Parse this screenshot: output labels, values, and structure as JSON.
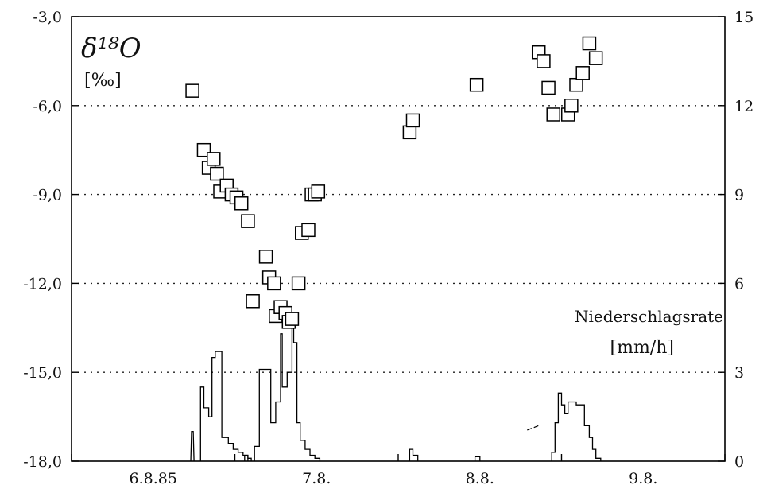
{
  "chart_data": {
    "type": "scatter",
    "title": "",
    "left_axis": {
      "label_line1": "δ¹⁸O",
      "label_line2": "[‰]",
      "ylim": [
        -18,
        -3
      ],
      "ticks": [
        -3,
        -6,
        -9,
        -12,
        -15,
        -18
      ],
      "tick_labels": [
        "-3,0",
        "-6,0",
        "-9,0",
        "-12,0",
        "-15,0",
        "-18,0"
      ]
    },
    "right_axis": {
      "label_line1": "Niederschlagsrate",
      "label_line2": "[mm/h]",
      "ylim": [
        0,
        15
      ],
      "ticks": [
        0,
        3,
        6,
        9,
        12,
        15
      ],
      "tick_labels": [
        "0",
        "3",
        "6",
        "9",
        "12",
        "15"
      ]
    },
    "x_axis": {
      "unit": "day",
      "xlim": [
        0,
        4
      ],
      "major_ticks": [
        0.5,
        1.5,
        2.5,
        3.5
      ],
      "tick_labels": [
        "6.8.85",
        "7.8.",
        "8.8.",
        "9.8."
      ],
      "minor_ticks": [
        0,
        1,
        2,
        3,
        4
      ]
    },
    "grid": {
      "style": "dotted",
      "y_lines": [
        -6,
        -9,
        -12,
        -15
      ]
    },
    "series": [
      {
        "kind": "scatter",
        "axis": "left",
        "marker": "open-square",
        "points": [
          [
            0.74,
            -5.5
          ],
          [
            0.81,
            -7.5
          ],
          [
            0.84,
            -8.1
          ],
          [
            0.87,
            -7.8
          ],
          [
            0.89,
            -8.3
          ],
          [
            0.91,
            -8.9
          ],
          [
            0.95,
            -8.7
          ],
          [
            0.98,
            -9.0
          ],
          [
            1.01,
            -9.1
          ],
          [
            1.04,
            -9.3
          ],
          [
            1.08,
            -9.9
          ],
          [
            1.11,
            -12.6
          ],
          [
            1.19,
            -11.1
          ],
          [
            1.21,
            -11.8
          ],
          [
            1.24,
            -12.0
          ],
          [
            1.25,
            -13.1
          ],
          [
            1.28,
            -12.8
          ],
          [
            1.31,
            -13.0
          ],
          [
            1.33,
            -13.3
          ],
          [
            1.35,
            -13.2
          ],
          [
            1.39,
            -12.0
          ],
          [
            1.41,
            -10.3
          ],
          [
            1.45,
            -10.2
          ],
          [
            1.47,
            -9.0
          ],
          [
            1.49,
            -9.0
          ],
          [
            1.51,
            -8.9
          ],
          [
            2.07,
            -6.9
          ],
          [
            2.09,
            -6.5
          ],
          [
            2.48,
            -5.3
          ],
          [
            2.86,
            -4.2
          ],
          [
            2.89,
            -4.5
          ],
          [
            2.92,
            -5.4
          ],
          [
            2.95,
            -6.3
          ],
          [
            3.04,
            -6.3
          ],
          [
            3.06,
            -6.0
          ],
          [
            3.09,
            -5.3
          ],
          [
            3.13,
            -4.9
          ],
          [
            3.17,
            -3.9
          ],
          [
            3.21,
            -4.4
          ]
        ]
      },
      {
        "kind": "step",
        "axis": "right",
        "name": "Niederschlagsrate",
        "segments": [
          [
            [
              0.73,
              0
            ],
            [
              0.735,
              1.0
            ],
            [
              0.745,
              1.0
            ],
            [
              0.75,
              0
            ]
          ],
          [
            [
              0.79,
              0
            ],
            [
              0.79,
              2.5
            ],
            [
              0.81,
              2.5
            ],
            [
              0.81,
              1.8
            ],
            [
              0.84,
              1.8
            ],
            [
              0.84,
              1.5
            ],
            [
              0.86,
              1.5
            ],
            [
              0.86,
              3.5
            ],
            [
              0.88,
              3.5
            ],
            [
              0.88,
              3.7
            ],
            [
              0.92,
              3.7
            ],
            [
              0.92,
              0.8
            ],
            [
              0.96,
              0.8
            ],
            [
              0.96,
              0.6
            ],
            [
              0.99,
              0.6
            ],
            [
              0.99,
              0.4
            ],
            [
              1.02,
              0.4
            ],
            [
              1.02,
              0.3
            ],
            [
              1.05,
              0.3
            ],
            [
              1.05,
              0.2
            ],
            [
              1.08,
              0.2
            ],
            [
              1.08,
              0.1
            ],
            [
              1.1,
              0.1
            ],
            [
              1.1,
              0
            ]
          ],
          [
            [
              1.06,
              0
            ],
            [
              1.06,
              0.2
            ],
            [
              1.08,
              0.2
            ],
            [
              1.08,
              0
            ]
          ],
          [
            [
              1.12,
              0
            ],
            [
              1.12,
              0.5
            ],
            [
              1.15,
              0.5
            ],
            [
              1.15,
              3.1
            ],
            [
              1.22,
              3.1
            ],
            [
              1.22,
              1.3
            ],
            [
              1.25,
              1.3
            ],
            [
              1.25,
              2.0
            ],
            [
              1.28,
              2.0
            ],
            [
              1.28,
              4.3
            ],
            [
              1.29,
              4.3
            ],
            [
              1.29,
              2.5
            ],
            [
              1.32,
              2.5
            ],
            [
              1.32,
              3.0
            ],
            [
              1.35,
              3.0
            ],
            [
              1.35,
              4.7
            ],
            [
              1.36,
              4.7
            ],
            [
              1.36,
              4.0
            ],
            [
              1.38,
              4.0
            ],
            [
              1.38,
              1.3
            ],
            [
              1.4,
              1.3
            ],
            [
              1.4,
              0.7
            ],
            [
              1.43,
              0.7
            ],
            [
              1.43,
              0.4
            ],
            [
              1.46,
              0.4
            ],
            [
              1.46,
              0.2
            ],
            [
              1.49,
              0.2
            ],
            [
              1.49,
              0.1
            ],
            [
              1.52,
              0.1
            ],
            [
              1.52,
              0
            ]
          ],
          [
            [
              2.07,
              0
            ],
            [
              2.07,
              0.4
            ],
            [
              2.09,
              0.4
            ],
            [
              2.09,
              0.2
            ],
            [
              2.12,
              0.2
            ],
            [
              2.12,
              0
            ]
          ],
          [
            [
              2.47,
              0
            ],
            [
              2.47,
              0.15
            ],
            [
              2.5,
              0.15
            ],
            [
              2.5,
              0
            ]
          ],
          [
            [
              2.94,
              0
            ],
            [
              2.94,
              0.3
            ],
            [
              2.96,
              0.3
            ],
            [
              2.96,
              1.3
            ],
            [
              2.98,
              1.3
            ],
            [
              2.98,
              2.3
            ],
            [
              3.0,
              2.3
            ],
            [
              3.0,
              1.9
            ],
            [
              3.02,
              1.9
            ],
            [
              3.02,
              1.6
            ],
            [
              3.04,
              1.6
            ],
            [
              3.04,
              2.0
            ],
            [
              3.09,
              2.0
            ],
            [
              3.09,
              1.9
            ],
            [
              3.14,
              1.9
            ],
            [
              3.14,
              1.2
            ],
            [
              3.17,
              1.2
            ],
            [
              3.17,
              0.8
            ],
            [
              3.19,
              0.8
            ],
            [
              3.19,
              0.4
            ],
            [
              3.21,
              0.4
            ],
            [
              3.21,
              0.1
            ],
            [
              3.24,
              0.1
            ],
            [
              3.24,
              0
            ]
          ]
        ]
      }
    ],
    "annotations": [
      {
        "kind": "stroke",
        "axis": "right",
        "points": [
          [
            2.79,
            1.05
          ],
          [
            2.86,
            1.2
          ]
        ]
      }
    ]
  }
}
